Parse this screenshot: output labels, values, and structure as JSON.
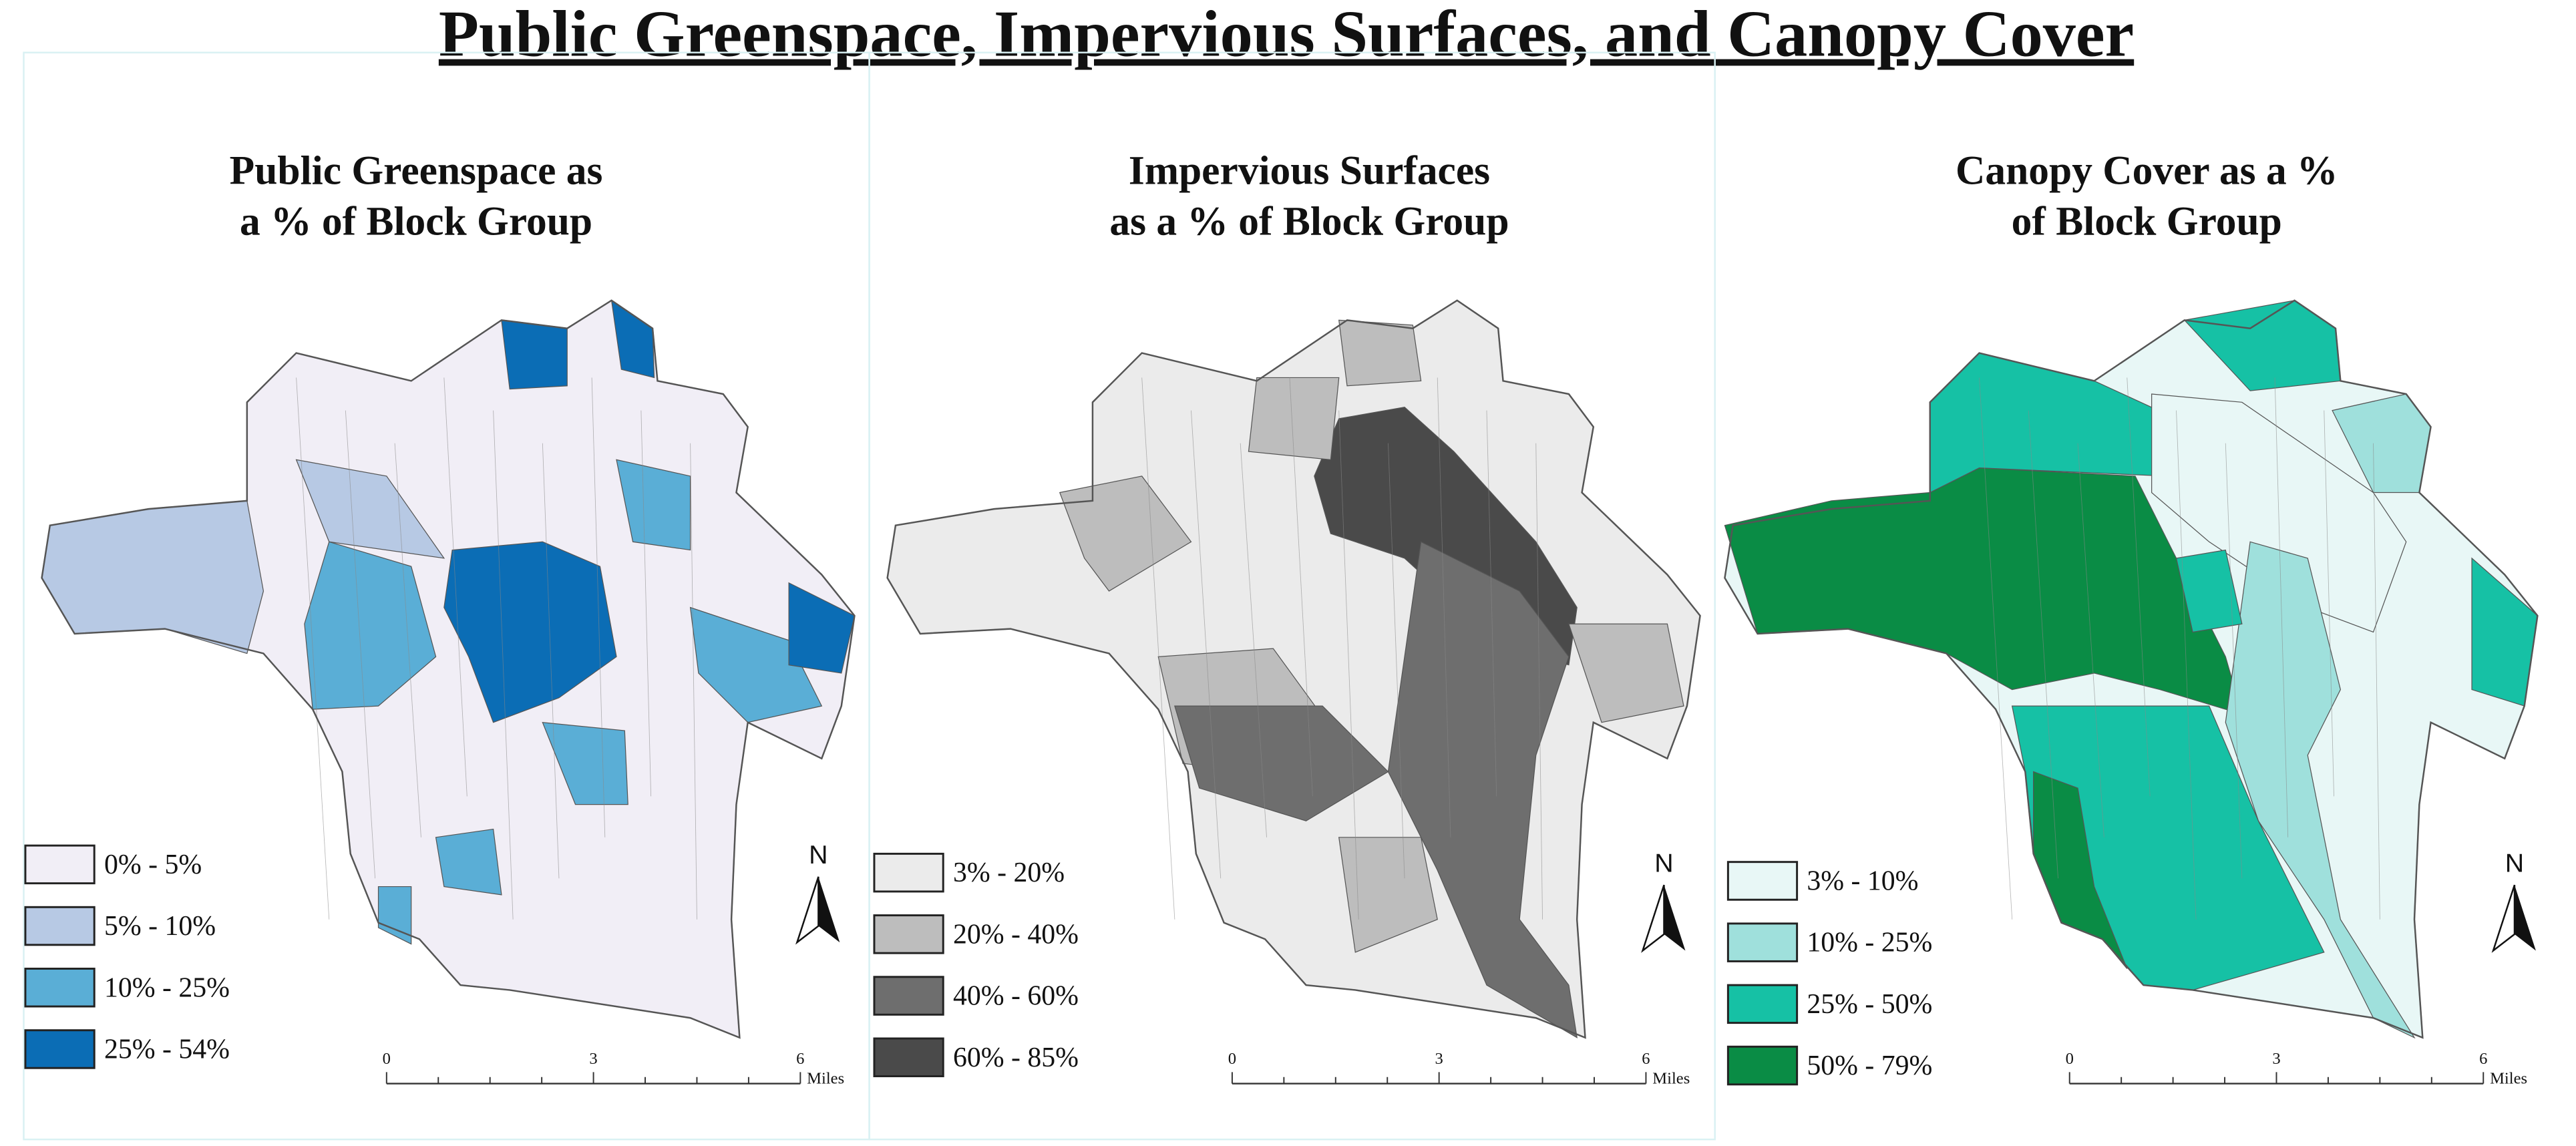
{
  "title": "Public Greenspace, Impervious Surfaces, and Canopy Cover",
  "panels": [
    {
      "title_lines": [
        "Public Greenspace as",
        "a % of Block Group"
      ],
      "legend": [
        {
          "label": "0% - 5%",
          "color": "#f1eef6"
        },
        {
          "label": "5% - 10%",
          "color": "#b7c9e4"
        },
        {
          "label": "10% - 25%",
          "color": "#5aaed6"
        },
        {
          "label": "25% - 54%",
          "color": "#0b6db5"
        }
      ],
      "scale": {
        "labels": [
          "0",
          "3",
          "6"
        ],
        "unit": "Miles"
      },
      "north": "N"
    },
    {
      "title_lines": [
        "Impervious Surfaces",
        "as a % of Block Group"
      ],
      "legend": [
        {
          "label": "3% - 20%",
          "color": "#ebebeb"
        },
        {
          "label": "20% - 40%",
          "color": "#bdbdbd"
        },
        {
          "label": "40% - 60%",
          "color": "#6e6e6e"
        },
        {
          "label": "60% - 85%",
          "color": "#4a4a4a"
        }
      ],
      "scale": {
        "labels": [
          "0",
          "3",
          "6"
        ],
        "unit": "Miles"
      },
      "north": "N"
    },
    {
      "title_lines": [
        "Canopy Cover as a %",
        "of Block Group"
      ],
      "legend": [
        {
          "label": "3% - 10%",
          "color": "#e8f7f6"
        },
        {
          "label": "10% - 25%",
          "color": "#9fe0dc"
        },
        {
          "label": "25% - 50%",
          "color": "#16c1a5"
        },
        {
          "label": "50% - 79%",
          "color": "#0a8c45"
        }
      ],
      "scale": {
        "labels": [
          "0",
          "3",
          "6"
        ],
        "unit": "Miles"
      },
      "north": "N"
    }
  ]
}
